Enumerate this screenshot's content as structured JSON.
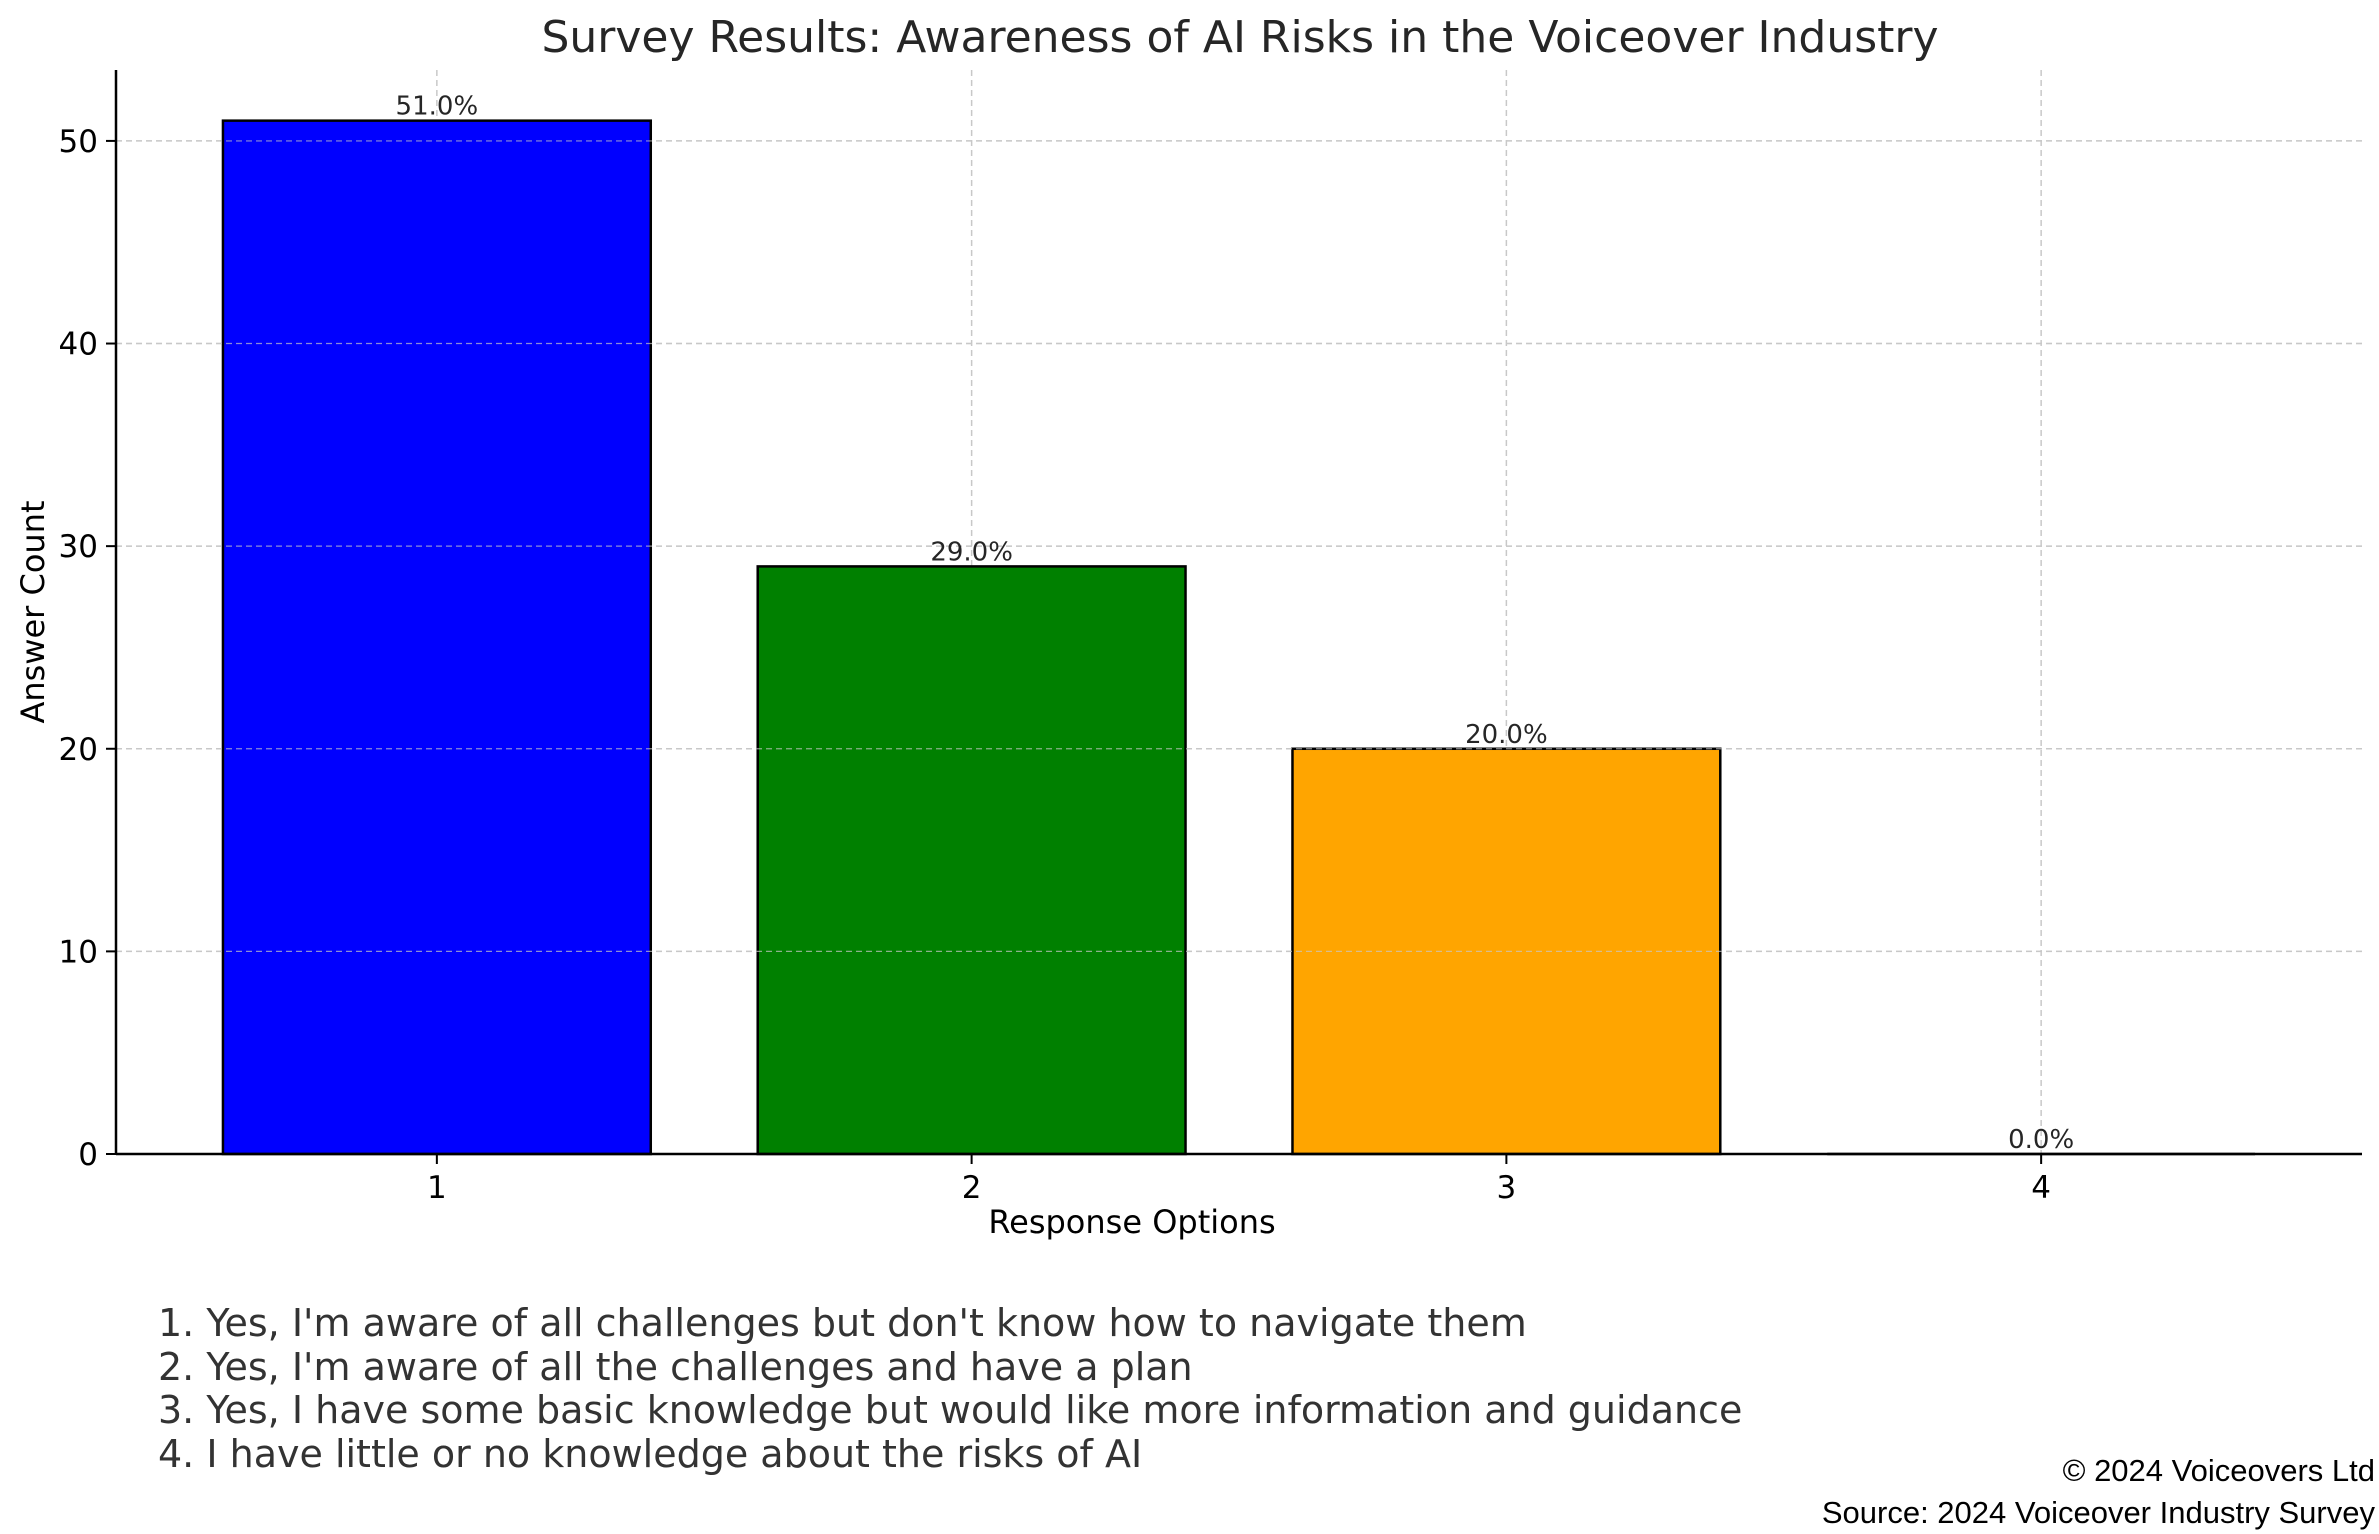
{
  "chart_data": {
    "type": "bar",
    "title": "Survey Results: Awareness of AI Risks in the Voiceover Industry",
    "xlabel": "Response Options",
    "ylabel": "Answer Count",
    "categories": [
      "1",
      "2",
      "3",
      "4"
    ],
    "values": [
      51,
      29,
      20,
      0
    ],
    "data_labels": [
      "51.0%",
      "29.0%",
      "20.0%",
      "0.0%"
    ],
    "colors": [
      "#0000ff",
      "#008000",
      "#ffa500",
      "#ffffff"
    ],
    "ylim": [
      0,
      53.5
    ],
    "yticks": [
      0,
      10,
      20,
      30,
      40,
      50
    ],
    "grid": true
  },
  "legend": {
    "items": [
      "1. Yes, I'm aware of all challenges but don't know how to navigate them",
      "2. Yes, I'm aware of all the challenges and have a plan",
      "3. Yes, I have some basic knowledge but would like more information and guidance",
      "4. I have little or no knowledge about the risks of AI"
    ]
  },
  "footer": {
    "copyright": "© 2024 Voiceovers Ltd",
    "source": "Source: 2024 Voiceover Industry Survey"
  }
}
